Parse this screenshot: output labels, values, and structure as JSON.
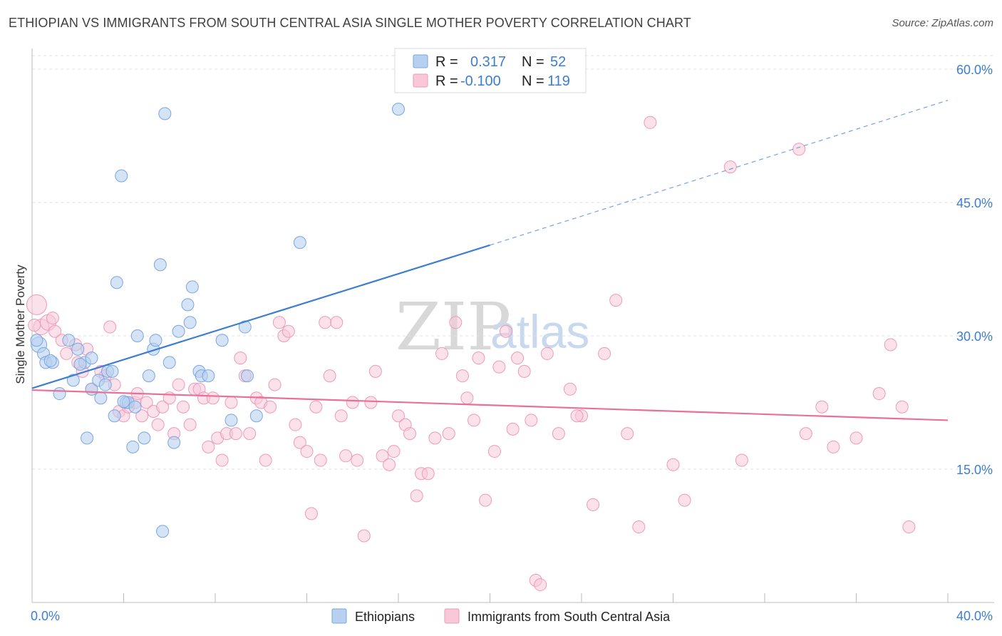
{
  "title": "ETHIOPIAN VS IMMIGRANTS FROM SOUTH CENTRAL ASIA SINGLE MOTHER POVERTY CORRELATION CHART",
  "source": "Source: ZipAtlas.com",
  "watermark": {
    "zip": "ZIP",
    "atlas": "atlas"
  },
  "colors": {
    "blue": "#3c7ed0",
    "blue_fill": "#b7d0f0",
    "blue_stroke": "#7aa6de",
    "pink": "#e8709a",
    "pink_fill": "#f8c8d8",
    "pink_stroke": "#ee9ab6"
  },
  "legend_top": {
    "rows": [
      {
        "r_label": "R =",
        "r_value": "0.317",
        "n_label": "N =",
        "n_value": "52"
      },
      {
        "r_label": "R =",
        "r_value": "-0.100",
        "n_label": "N =",
        "n_value": "119"
      }
    ]
  },
  "chart_data": {
    "type": "scatter",
    "title": "ETHIOPIAN VS IMMIGRANTS FROM SOUTH CENTRAL ASIA SINGLE MOTHER POVERTY CORRELATION CHART",
    "xlabel": "",
    "ylabel": "Single Mother Poverty",
    "xlim": [
      0,
      40
    ],
    "ylim": [
      0,
      60
    ],
    "x_tick_labels": [
      "0.0%",
      "40.0%"
    ],
    "y_ticks": [
      15,
      30,
      45,
      60
    ],
    "y_tick_labels": [
      "15.0%",
      "30.0%",
      "45.0%",
      "60.0%"
    ],
    "grid": true,
    "legend_position": "bottom",
    "series": [
      {
        "name": "Ethiopians",
        "color": "#3c7ed0",
        "trend": {
          "x0": 0,
          "y0": 24.1,
          "x1": 20,
          "y1": 40.2,
          "dash_to": 40,
          "dash_y": 56.5
        },
        "points": [
          [
            0.3,
            29.0
          ],
          [
            0.5,
            28.0
          ],
          [
            0.6,
            27.0
          ],
          [
            0.9,
            27.0
          ],
          [
            1.2,
            23.5
          ],
          [
            1.6,
            29.5
          ],
          [
            1.8,
            25.0
          ],
          [
            2.0,
            28.5
          ],
          [
            2.3,
            27.0
          ],
          [
            2.4,
            18.5
          ],
          [
            2.6,
            27.5
          ],
          [
            2.6,
            24.0
          ],
          [
            2.9,
            25.0
          ],
          [
            3.0,
            23.0
          ],
          [
            3.2,
            24.5
          ],
          [
            3.3,
            26.0
          ],
          [
            3.5,
            26.0
          ],
          [
            3.6,
            21.0
          ],
          [
            3.7,
            36.0
          ],
          [
            3.9,
            48.0
          ],
          [
            4.1,
            22.5
          ],
          [
            4.2,
            22.5
          ],
          [
            4.4,
            17.5
          ],
          [
            4.5,
            22.0
          ],
          [
            4.6,
            30.0
          ],
          [
            4.9,
            18.5
          ],
          [
            5.1,
            25.5
          ],
          [
            5.3,
            28.5
          ],
          [
            5.4,
            29.5
          ],
          [
            5.6,
            38.0
          ],
          [
            5.8,
            55.0
          ],
          [
            6.0,
            27.0
          ],
          [
            6.2,
            18.0
          ],
          [
            6.4,
            30.5
          ],
          [
            6.8,
            33.5
          ],
          [
            6.9,
            31.5
          ],
          [
            7.0,
            35.5
          ],
          [
            7.3,
            26.0
          ],
          [
            7.4,
            25.5
          ],
          [
            7.7,
            25.5
          ],
          [
            8.3,
            29.5
          ],
          [
            8.7,
            20.5
          ],
          [
            9.3,
            31.0
          ],
          [
            9.4,
            25.5
          ],
          [
            9.8,
            21.0
          ],
          [
            11.7,
            40.5
          ],
          [
            16.0,
            55.5
          ],
          [
            5.7,
            8.0
          ],
          [
            0.2,
            29.5
          ],
          [
            0.8,
            27.2
          ],
          [
            2.1,
            26.8
          ],
          [
            4.0,
            22.6
          ]
        ]
      },
      {
        "name": "Immigrants from South Central Asia",
        "color": "#e8709a",
        "trend": {
          "x0": 0,
          "y0": 23.9,
          "x1": 40,
          "y1": 20.5
        },
        "points": [
          [
            0.2,
            33.5
          ],
          [
            0.4,
            31.0
          ],
          [
            0.7,
            31.5
          ],
          [
            1.0,
            30.5
          ],
          [
            1.3,
            29.5
          ],
          [
            1.5,
            28.0
          ],
          [
            1.9,
            29.0
          ],
          [
            2.0,
            27.0
          ],
          [
            2.2,
            26.0
          ],
          [
            2.4,
            28.5
          ],
          [
            2.6,
            24.0
          ],
          [
            3.0,
            26.0
          ],
          [
            3.2,
            25.5
          ],
          [
            3.4,
            31.0
          ],
          [
            3.6,
            24.5
          ],
          [
            3.8,
            21.5
          ],
          [
            4.0,
            21.0
          ],
          [
            4.2,
            22.0
          ],
          [
            4.5,
            22.5
          ],
          [
            4.8,
            21.0
          ],
          [
            5.0,
            22.5
          ],
          [
            5.3,
            21.5
          ],
          [
            5.5,
            20.0
          ],
          [
            5.7,
            22.0
          ],
          [
            6.0,
            23.0
          ],
          [
            6.2,
            19.0
          ],
          [
            6.4,
            24.5
          ],
          [
            6.6,
            22.0
          ],
          [
            6.9,
            20.0
          ],
          [
            7.1,
            24.0
          ],
          [
            7.3,
            24.0
          ],
          [
            7.5,
            23.0
          ],
          [
            7.7,
            17.5
          ],
          [
            7.9,
            23.0
          ],
          [
            8.1,
            18.5
          ],
          [
            8.3,
            16.0
          ],
          [
            8.5,
            19.0
          ],
          [
            8.7,
            22.5
          ],
          [
            8.9,
            19.0
          ],
          [
            9.1,
            27.5
          ],
          [
            9.3,
            25.5
          ],
          [
            9.5,
            19.0
          ],
          [
            9.8,
            23.0
          ],
          [
            10.0,
            22.5
          ],
          [
            10.2,
            16.0
          ],
          [
            10.4,
            22.0
          ],
          [
            10.6,
            24.5
          ],
          [
            10.8,
            31.5
          ],
          [
            11.0,
            30.0
          ],
          [
            11.2,
            30.5
          ],
          [
            11.5,
            20.0
          ],
          [
            11.7,
            18.0
          ],
          [
            12.0,
            17.0
          ],
          [
            12.2,
            10.0
          ],
          [
            12.4,
            22.0
          ],
          [
            12.6,
            16.0
          ],
          [
            12.8,
            31.5
          ],
          [
            13.0,
            25.5
          ],
          [
            13.3,
            31.5
          ],
          [
            13.5,
            21.0
          ],
          [
            13.7,
            16.5
          ],
          [
            14.0,
            22.5
          ],
          [
            14.2,
            16.0
          ],
          [
            14.5,
            7.5
          ],
          [
            14.8,
            22.5
          ],
          [
            15.0,
            26.0
          ],
          [
            15.3,
            16.5
          ],
          [
            15.6,
            15.5
          ],
          [
            15.8,
            17.0
          ],
          [
            16.0,
            21.0
          ],
          [
            16.3,
            20.0
          ],
          [
            16.5,
            19.0
          ],
          [
            16.8,
            12.0
          ],
          [
            17.0,
            14.5
          ],
          [
            17.3,
            14.5
          ],
          [
            17.6,
            18.5
          ],
          [
            17.9,
            28.0
          ],
          [
            18.2,
            19.0
          ],
          [
            18.5,
            31.5
          ],
          [
            18.8,
            25.5
          ],
          [
            19.0,
            23.0
          ],
          [
            19.3,
            20.5
          ],
          [
            19.5,
            27.5
          ],
          [
            19.8,
            11.5
          ],
          [
            20.2,
            17.0
          ],
          [
            20.4,
            26.5
          ],
          [
            20.7,
            30.5
          ],
          [
            21.0,
            19.5
          ],
          [
            21.2,
            27.5
          ],
          [
            21.5,
            26.0
          ],
          [
            21.8,
            20.5
          ],
          [
            22.0,
            2.5
          ],
          [
            22.2,
            2.0
          ],
          [
            22.5,
            28.0
          ],
          [
            23.0,
            19.0
          ],
          [
            23.5,
            24.0
          ],
          [
            24.0,
            21.0
          ],
          [
            24.5,
            11.0
          ],
          [
            25.0,
            28.0
          ],
          [
            25.5,
            34.0
          ],
          [
            26.0,
            19.0
          ],
          [
            26.5,
            8.5
          ],
          [
            27.0,
            54.0
          ],
          [
            28.0,
            15.5
          ],
          [
            28.5,
            11.5
          ],
          [
            30.5,
            49.0
          ],
          [
            31.0,
            16.0
          ],
          [
            33.5,
            51.0
          ],
          [
            33.8,
            19.0
          ],
          [
            34.5,
            22.0
          ],
          [
            35.0,
            17.5
          ],
          [
            36.0,
            18.5
          ],
          [
            37.0,
            23.5
          ],
          [
            37.5,
            29.0
          ],
          [
            38.0,
            22.0
          ],
          [
            38.3,
            8.5
          ],
          [
            0.1,
            31.2
          ],
          [
            0.9,
            32.0
          ],
          [
            4.6,
            23.5
          ],
          [
            23.8,
            21.0
          ]
        ]
      }
    ]
  },
  "bottom_legend": [
    {
      "label": "Ethiopians"
    },
    {
      "label": "Immigrants from South Central Asia"
    }
  ]
}
